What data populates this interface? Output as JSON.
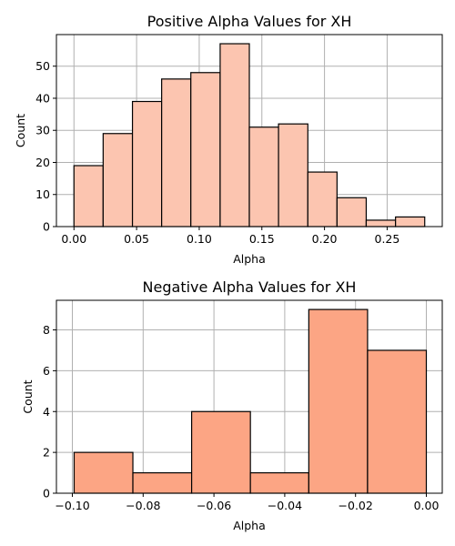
{
  "chart_data": [
    {
      "type": "bar",
      "title": "Positive Alpha Values for XH",
      "xlabel": "Alpha",
      "ylabel": "Count",
      "bin_edges": [
        0.0,
        0.0233,
        0.0467,
        0.07,
        0.0933,
        0.1167,
        0.14,
        0.1633,
        0.1867,
        0.21,
        0.2333,
        0.2567,
        0.28
      ],
      "values": [
        19,
        29,
        39,
        46,
        48,
        57,
        31,
        32,
        17,
        9,
        2,
        3
      ],
      "xlim": [
        -0.014,
        0.294
      ],
      "ylim": [
        0,
        59.85
      ],
      "xticks": [
        0.0,
        0.05,
        0.1,
        0.15,
        0.2,
        0.25
      ],
      "xtick_labels": [
        "0.00",
        "0.05",
        "0.10",
        "0.15",
        "0.20",
        "0.25"
      ],
      "yticks": [
        0,
        10,
        20,
        30,
        40,
        50
      ],
      "ytick_labels": [
        "0",
        "10",
        "20",
        "30",
        "40",
        "50"
      ],
      "grid": true,
      "color": "#fcc5b0"
    },
    {
      "type": "bar",
      "title": "Negative Alpha Values for XH",
      "xlabel": "Alpha",
      "ylabel": "Count",
      "bin_edges": [
        -0.0995,
        -0.0829,
        -0.0663,
        -0.0497,
        -0.0332,
        -0.0166,
        0.0
      ],
      "values": [
        2,
        1,
        4,
        1,
        9,
        7
      ],
      "xlim": [
        -0.1045,
        0.0045
      ],
      "ylim": [
        0,
        9.45
      ],
      "xticks": [
        -0.1,
        -0.08,
        -0.06,
        -0.04,
        -0.02,
        0.0
      ],
      "xtick_labels": [
        "−0.10",
        "−0.08",
        "−0.06",
        "−0.04",
        "−0.02",
        "0.00"
      ],
      "yticks": [
        0,
        2,
        4,
        6,
        8
      ],
      "ytick_labels": [
        "0",
        "2",
        "4",
        "6",
        "8"
      ],
      "grid": true,
      "color": "#fca584"
    }
  ]
}
